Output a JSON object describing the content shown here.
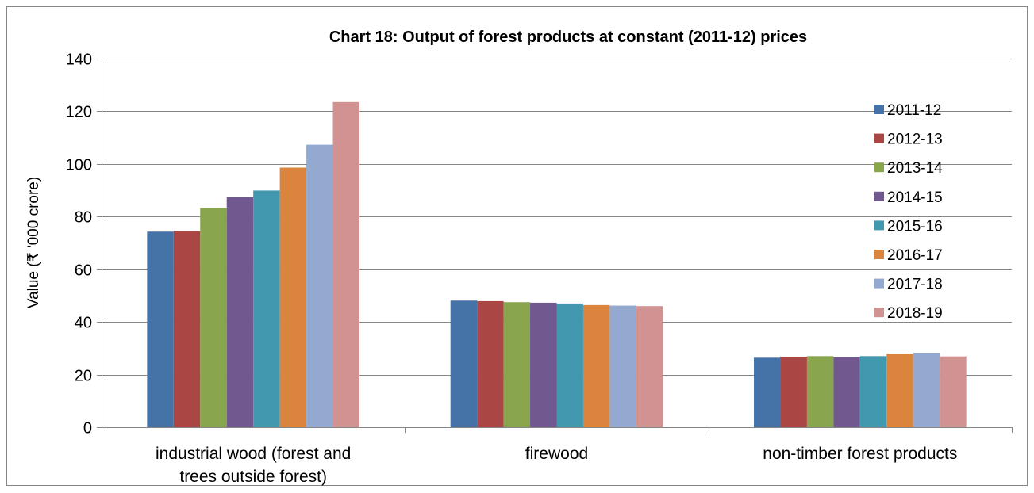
{
  "chart_data": {
    "type": "bar",
    "title": "Chart 18: Output of forest products at constant (2011-12) prices",
    "xlabel": "",
    "ylabel": "Value (₹ '000 crore)",
    "ylim": [
      0,
      140
    ],
    "yticks": [
      0,
      20,
      40,
      60,
      80,
      100,
      120,
      140
    ],
    "grid": true,
    "legend_position": "right",
    "categories": [
      [
        "industrial wood (forest and",
        "trees outside forest)"
      ],
      [
        "firewood"
      ],
      [
        "non-timber forest products"
      ]
    ],
    "series": [
      {
        "name": "2011-12",
        "color": "#4572A7",
        "values": [
          74.3,
          48.1,
          26.4
        ]
      },
      {
        "name": "2012-13",
        "color": "#AA4643",
        "values": [
          74.5,
          47.9,
          26.8
        ]
      },
      {
        "name": "2013-14",
        "color": "#89A54E",
        "values": [
          83.3,
          47.5,
          27.0
        ]
      },
      {
        "name": "2014-15",
        "color": "#71588F",
        "values": [
          87.4,
          47.3,
          26.6
        ]
      },
      {
        "name": "2015-16",
        "color": "#4198AF",
        "values": [
          89.9,
          47.0,
          27.0
        ]
      },
      {
        "name": "2016-17",
        "color": "#DB843D",
        "values": [
          98.6,
          46.4,
          27.9
        ]
      },
      {
        "name": "2017-18",
        "color": "#93A9CF",
        "values": [
          107.3,
          46.2,
          28.3
        ]
      },
      {
        "name": "2018-19",
        "color": "#D19392",
        "values": [
          123.5,
          46.0,
          26.9
        ]
      }
    ]
  }
}
